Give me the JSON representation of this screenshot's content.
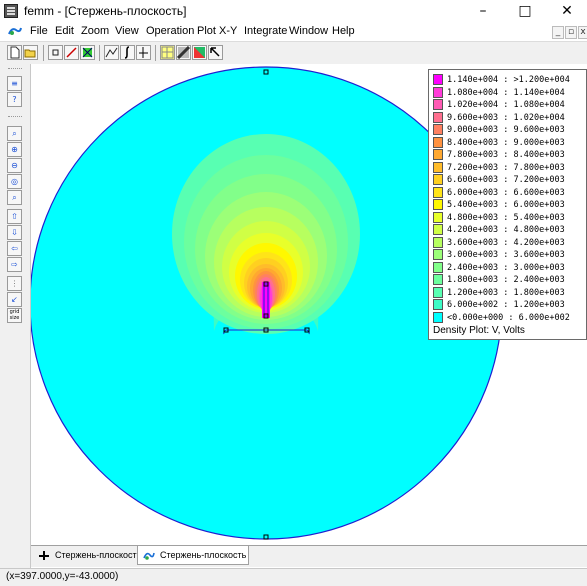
{
  "window": {
    "title": "femm - [Стержень-плоскость]",
    "minimize_glyph": "–",
    "maximize_glyph": "□",
    "close_glyph": "✕"
  },
  "menu": [
    "File",
    "Edit",
    "Zoom",
    "View",
    "Operation",
    "Plot X-Y",
    "Integrate",
    "Window",
    "Help"
  ],
  "legend": {
    "entries": [
      {
        "label": "1.140e+004 : >1.200e+004",
        "color": "#ff00ff"
      },
      {
        "label": "1.080e+004 : 1.140e+004",
        "color": "#ff3ad9"
      },
      {
        "label": "1.020e+004 : 1.080e+004",
        "color": "#ff5ab4"
      },
      {
        "label": "9.600e+003 : 1.020e+004",
        "color": "#ff6f8f"
      },
      {
        "label": "9.000e+003 : 9.600e+003",
        "color": "#ff8060"
      },
      {
        "label": "8.400e+003 : 9.000e+003",
        "color": "#ff9240"
      },
      {
        "label": "7.800e+003 : 8.400e+003",
        "color": "#ffa830"
      },
      {
        "label": "7.200e+003 : 7.800e+003",
        "color": "#ffbc2a"
      },
      {
        "label": "6.600e+003 : 7.200e+003",
        "color": "#ffd020"
      },
      {
        "label": "6.000e+003 : 6.600e+003",
        "color": "#ffe418"
      },
      {
        "label": "5.400e+003 : 6.000e+003",
        "color": "#fff800"
      },
      {
        "label": "4.800e+003 : 5.400e+003",
        "color": "#e8ff2a"
      },
      {
        "label": "4.200e+003 : 4.800e+003",
        "color": "#d0ff45"
      },
      {
        "label": "3.600e+003 : 4.200e+003",
        "color": "#b7ff5f"
      },
      {
        "label": "3.000e+003 : 3.600e+003",
        "color": "#9cff78"
      },
      {
        "label": "2.400e+003 : 3.000e+003",
        "color": "#82ff8a"
      },
      {
        "label": "1.800e+003 : 2.400e+003",
        "color": "#6cff9e"
      },
      {
        "label": "1.200e+003 : 1.800e+003",
        "color": "#58ffb2"
      },
      {
        "label": "6.000e+002 : 1.200e+003",
        "color": "#3cfcc6"
      },
      {
        "label": "<0.000e+000 : 6.000e+002",
        "color": "#00ffff"
      }
    ],
    "title": "Density Plot: V, Volts"
  },
  "tabs": [
    {
      "label": "Стержень-плоскость",
      "icon": "preprocessor-icon",
      "active": false
    },
    {
      "label": "Стержень-плоскость",
      "icon": "postprocessor-icon",
      "active": true
    }
  ],
  "status": {
    "coordinates": "(x=397.0000,y=-43.0000)"
  },
  "sidebar_icons": [
    "block-label-icon",
    "point-props-icon",
    "zoom-window-icon",
    "zoom-in-icon",
    "zoom-out-icon",
    "zoom-natural-icon",
    "zoom-fit-icon",
    "pan-up-icon",
    "pan-down-icon",
    "pan-left-icon",
    "pan-right-icon",
    "grid-show-icon",
    "snap-grid-icon",
    "grid-size-icon"
  ],
  "sidebar_text": {
    "grid_size": "grid size"
  },
  "toolbar_icons": [
    "new-file-icon",
    "open-file-icon",
    "point-mode-icon",
    "line-mode-icon",
    "area-mode-icon",
    "contour-icon",
    "integrate-icon",
    "plot-xy-icon",
    "show-mesh-icon",
    "density-plot-icon",
    "vector-plot-icon",
    "select-arrow-icon"
  ],
  "colors": {
    "boundary": "#1f1fd0",
    "background_field": "#00ffff"
  }
}
